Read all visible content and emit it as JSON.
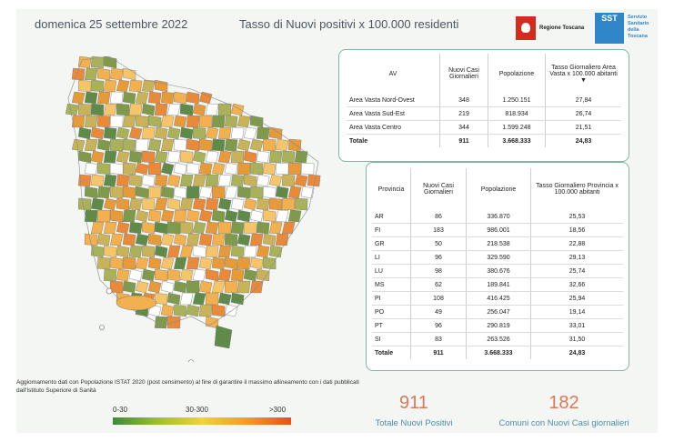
{
  "header": {
    "date": "domenica 25 settembre 2022",
    "title": "Tasso di Nuovi positivi x 100.000 residenti",
    "logo_rt": "Regione Toscana",
    "logo_sst_short": "SST",
    "logo_sst_text": "Servizio Sanitario della Toscana"
  },
  "av_table": {
    "headers": [
      "AV",
      "Nuovi Casi Giornalieri",
      "Popolazione",
      "Tasso Giornaliero Area Vasta x 100.000 abitanti"
    ],
    "rows": [
      [
        "Area Vasta Nord-Ovest",
        "348",
        "1.250.151",
        "27,84"
      ],
      [
        "Area Vasta Sud-Est",
        "219",
        "818.934",
        "26,74"
      ],
      [
        "Area Vasta Centro",
        "344",
        "1.599.248",
        "21,51"
      ]
    ],
    "total": [
      "Totale",
      "911",
      "3.668.333",
      "24,83"
    ]
  },
  "prov_table": {
    "headers": [
      "Provincia",
      "Nuovi Casi Giornalieri",
      "Popolazione",
      "Tasso Giornaliero Provincia x 100.000 abitanti"
    ],
    "rows": [
      [
        "AR",
        "86",
        "336.870",
        "25,53"
      ],
      [
        "FI",
        "183",
        "986.001",
        "18,56"
      ],
      [
        "GR",
        "50",
        "218.538",
        "22,88"
      ],
      [
        "LI",
        "96",
        "329.590",
        "29,13"
      ],
      [
        "LU",
        "98",
        "380.676",
        "25,74"
      ],
      [
        "MS",
        "62",
        "189.841",
        "32,66"
      ],
      [
        "PI",
        "108",
        "416.425",
        "25,94"
      ],
      [
        "PO",
        "49",
        "256.047",
        "19,14"
      ],
      [
        "PT",
        "96",
        "290.819",
        "33,01"
      ],
      [
        "SI",
        "83",
        "263.526",
        "31,50"
      ]
    ],
    "total": [
      "Totale",
      "911",
      "3.668.333",
      "24,83"
    ]
  },
  "footnote": "Aggiornamento dati con Popolazione ISTAT 2020 (post censimento) al fine di garantire il massimo allineamento con i dati pubblicati dall'Istituto Superiore di Sanità",
  "legend": {
    "labels": [
      "0-30",
      "30-300",
      ">300"
    ],
    "colors": [
      "#3e8a3a",
      "#9cbf2f",
      "#f0d23a",
      "#f39a2c",
      "#e2521c"
    ]
  },
  "kpis": [
    {
      "value": "911",
      "label": "Totale Nuovi Positivi"
    },
    {
      "value": "182",
      "label": "Comuni con Nuovi Casi giornalieri"
    }
  ],
  "map_colors": [
    "#ffffff",
    "#f2b04e",
    "#e79a3a",
    "#c9b35a",
    "#a9b25a",
    "#7f9a4a",
    "#5f8a48",
    "#e88a3a",
    "#f6c56a"
  ]
}
